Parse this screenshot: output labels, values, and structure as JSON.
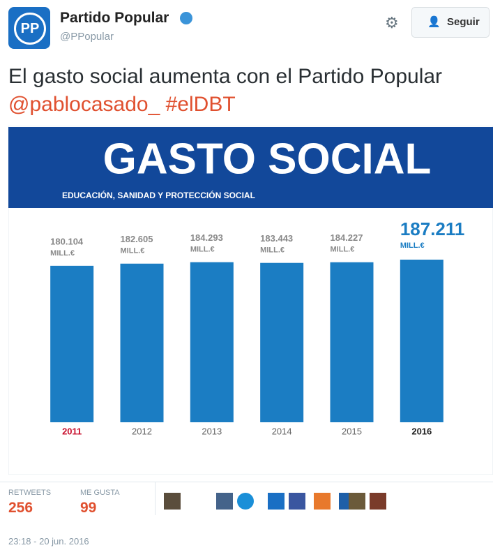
{
  "header": {
    "name": "Partido Popular",
    "handle": "@PPopular",
    "follow": "Seguir"
  },
  "tweet": {
    "text": "El gasto social aumenta con el Partido Popular",
    "mention": "@pablocasado_",
    "hashtag": "#elDBT"
  },
  "chart_data": {
    "type": "bar",
    "title": "GASTO SOCIAL",
    "subtitle": "EDUCACIÓN, SANIDAD Y PROTECCIÓN SOCIAL",
    "categories": [
      "2011",
      "2012",
      "2013",
      "2014",
      "2015",
      "2016"
    ],
    "values": [
      180104,
      182605,
      184293,
      183443,
      184227,
      187211
    ],
    "value_labels": [
      "180.104",
      "182.605",
      "184.293",
      "183.443",
      "184.227",
      "187.211"
    ],
    "unit": "MILL.€",
    "color": "#1b7dc3"
  },
  "stats": {
    "retweets_label": "RETWEETS",
    "retweets": 256,
    "likes_label": "ME GUSTA",
    "likes": 99
  },
  "timestamp": "23:18 - 20 jun. 2016"
}
